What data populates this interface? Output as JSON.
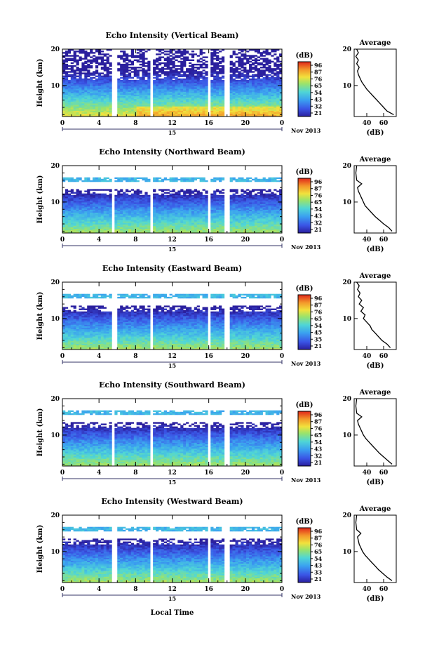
{
  "figure": {
    "xlabel_bottom": "Local Time",
    "date_label": "Nov 2013",
    "day_label": "15"
  },
  "chart_data": [
    {
      "type": "heatmap",
      "title": "Echo Intensity (Vertical Beam)",
      "ylabel": "Height (km)",
      "xlabel": "Local Time",
      "x_ticks": [
        "0",
        "4",
        "8",
        "12",
        "16",
        "20",
        "0"
      ],
      "y_ticks": [
        "10",
        "20"
      ],
      "xlim": [
        0,
        24
      ],
      "ylim": [
        1.5,
        20
      ],
      "colorbar": {
        "label": "(dB)",
        "ticks": [
          "96",
          "87",
          "76",
          "65",
          "54",
          "43",
          "32",
          "21"
        ]
      },
      "data_gaps_hours": [
        [
          5.5,
          5.9
        ],
        [
          9.6,
          9.9
        ],
        [
          15.9,
          16.3
        ],
        [
          17.8,
          18.2
        ]
      ],
      "profile": {
        "title": "Average",
        "xlabel": "(dB)",
        "x_ticks": [
          "40",
          "60"
        ],
        "y_ticks": [
          "10",
          "20"
        ],
        "xlim": [
          25,
          75
        ],
        "points": [
          [
            72,
            2
          ],
          [
            64,
            3
          ],
          [
            60,
            4
          ],
          [
            56,
            5
          ],
          [
            52,
            6
          ],
          [
            48,
            7
          ],
          [
            44,
            8
          ],
          [
            40,
            9
          ],
          [
            37,
            10
          ],
          [
            34,
            11
          ],
          [
            32,
            12
          ],
          [
            30,
            13
          ],
          [
            29,
            14
          ],
          [
            31,
            15
          ],
          [
            28,
            16
          ],
          [
            30,
            17
          ],
          [
            27,
            18
          ],
          [
            30,
            19
          ],
          [
            28,
            20
          ]
        ]
      }
    },
    {
      "type": "heatmap",
      "title": "Echo Intensity (Northward Beam)",
      "ylabel": "Height (km)",
      "xlabel": "Local Time",
      "x_ticks": [
        "0",
        "4",
        "8",
        "12",
        "16",
        "20",
        "0"
      ],
      "y_ticks": [
        "10",
        "20"
      ],
      "xlim": [
        0,
        24
      ],
      "ylim": [
        1.5,
        20
      ],
      "colorbar": {
        "label": "(dB)",
        "ticks": [
          "96",
          "87",
          "76",
          "65",
          "54",
          "43",
          "32",
          "21"
        ]
      },
      "data_gaps_hours": [
        [
          5.3,
          5.7
        ],
        [
          9.6,
          9.9
        ],
        [
          15.9,
          16.3
        ],
        [
          17.8,
          18.2
        ]
      ],
      "profile": {
        "title": "Average",
        "xlabel": "(dB)",
        "x_ticks": [
          "40",
          "60"
        ],
        "y_ticks": [
          "10",
          "20"
        ],
        "xlim": [
          25,
          75
        ],
        "points": [
          [
            70,
            2
          ],
          [
            66,
            3
          ],
          [
            60,
            4
          ],
          [
            55,
            5
          ],
          [
            50,
            6
          ],
          [
            46,
            7
          ],
          [
            42,
            8
          ],
          [
            38,
            9
          ],
          [
            36,
            10
          ],
          [
            34,
            11
          ],
          [
            32,
            12
          ],
          [
            30,
            13
          ],
          [
            29,
            14
          ],
          [
            34,
            15
          ],
          [
            28,
            16
          ],
          [
            27,
            18
          ],
          [
            28,
            20
          ]
        ]
      }
    },
    {
      "type": "heatmap",
      "title": "Echo Intensity (Eastward Beam)",
      "ylabel": "Height (km)",
      "xlabel": "Local Time",
      "x_ticks": [
        "0",
        "4",
        "8",
        "12",
        "16",
        "20",
        "0"
      ],
      "y_ticks": [
        "10",
        "20"
      ],
      "xlim": [
        0,
        24
      ],
      "ylim": [
        1.5,
        20
      ],
      "colorbar": {
        "label": "(dB)",
        "ticks": [
          "96",
          "87",
          "76",
          "65",
          "54",
          "45",
          "35",
          "21"
        ]
      },
      "data_gaps_hours": [
        [
          5.5,
          5.9
        ],
        [
          9.6,
          9.9
        ],
        [
          15.9,
          16.3
        ],
        [
          17.8,
          18.2
        ]
      ],
      "profile": {
        "title": "Average",
        "xlabel": "(dB)",
        "x_ticks": [
          "40",
          "60"
        ],
        "y_ticks": [
          "10",
          "20"
        ],
        "xlim": [
          25,
          75
        ],
        "points": [
          [
            68,
            2
          ],
          [
            64,
            3
          ],
          [
            58,
            4
          ],
          [
            54,
            5
          ],
          [
            50,
            6
          ],
          [
            46,
            7
          ],
          [
            44,
            8
          ],
          [
            40,
            9
          ],
          [
            36,
            10
          ],
          [
            38,
            11
          ],
          [
            33,
            12
          ],
          [
            36,
            13
          ],
          [
            31,
            14
          ],
          [
            34,
            15
          ],
          [
            30,
            16
          ],
          [
            32,
            17
          ],
          [
            29,
            18
          ],
          [
            31,
            19
          ],
          [
            28,
            20
          ]
        ]
      }
    },
    {
      "type": "heatmap",
      "title": "Echo Intensity (Southward Beam)",
      "ylabel": "Height (km)",
      "xlabel": "Local Time",
      "x_ticks": [
        "0",
        "4",
        "8",
        "12",
        "16",
        "20",
        "0"
      ],
      "y_ticks": [
        "10",
        "20"
      ],
      "xlim": [
        0,
        24
      ],
      "ylim": [
        1.5,
        20
      ],
      "colorbar": {
        "label": "(dB)",
        "ticks": [
          "96",
          "87",
          "76",
          "65",
          "54",
          "43",
          "32",
          "21"
        ]
      },
      "data_gaps_hours": [
        [
          5.3,
          5.7
        ],
        [
          9.6,
          9.9
        ],
        [
          15.9,
          16.3
        ],
        [
          17.8,
          18.2
        ]
      ],
      "profile": {
        "title": "Average",
        "xlabel": "(dB)",
        "x_ticks": [
          "40",
          "60"
        ],
        "y_ticks": [
          "10",
          "20"
        ],
        "xlim": [
          25,
          75
        ],
        "points": [
          [
            70,
            2
          ],
          [
            65,
            3
          ],
          [
            60,
            4
          ],
          [
            55,
            5
          ],
          [
            51,
            6
          ],
          [
            47,
            7
          ],
          [
            43,
            8
          ],
          [
            39,
            9
          ],
          [
            36,
            10
          ],
          [
            34,
            11
          ],
          [
            32,
            12
          ],
          [
            30,
            13
          ],
          [
            29,
            14
          ],
          [
            34,
            15
          ],
          [
            28,
            16
          ],
          [
            27,
            18
          ],
          [
            28,
            20
          ]
        ]
      }
    },
    {
      "type": "heatmap",
      "title": "Echo Intensity (Westward Beam)",
      "ylabel": "Height (km)",
      "xlabel": "Local Time",
      "x_ticks": [
        "0",
        "4",
        "8",
        "12",
        "16",
        "20",
        "0"
      ],
      "y_ticks": [
        "10",
        "20"
      ],
      "xlim": [
        0,
        24
      ],
      "ylim": [
        1.5,
        20
      ],
      "colorbar": {
        "label": "(dB)",
        "ticks": [
          "96",
          "87",
          "76",
          "65",
          "54",
          "43",
          "33",
          "21"
        ]
      },
      "data_gaps_hours": [
        [
          5.5,
          5.9
        ],
        [
          9.6,
          9.9
        ],
        [
          15.9,
          16.3
        ],
        [
          17.8,
          18.2
        ]
      ],
      "profile": {
        "title": "Average",
        "xlabel": "(dB)",
        "x_ticks": [
          "40",
          "60"
        ],
        "y_ticks": [
          "10",
          "20"
        ],
        "xlim": [
          25,
          75
        ],
        "points": [
          [
            70,
            2
          ],
          [
            64,
            3
          ],
          [
            59,
            4
          ],
          [
            54,
            5
          ],
          [
            50,
            6
          ],
          [
            46,
            7
          ],
          [
            42,
            8
          ],
          [
            38,
            9
          ],
          [
            35,
            10
          ],
          [
            33,
            11
          ],
          [
            31,
            12
          ],
          [
            30,
            13
          ],
          [
            29,
            14
          ],
          [
            33,
            15
          ],
          [
            28,
            16
          ],
          [
            27,
            18
          ],
          [
            28,
            20
          ]
        ]
      }
    }
  ]
}
